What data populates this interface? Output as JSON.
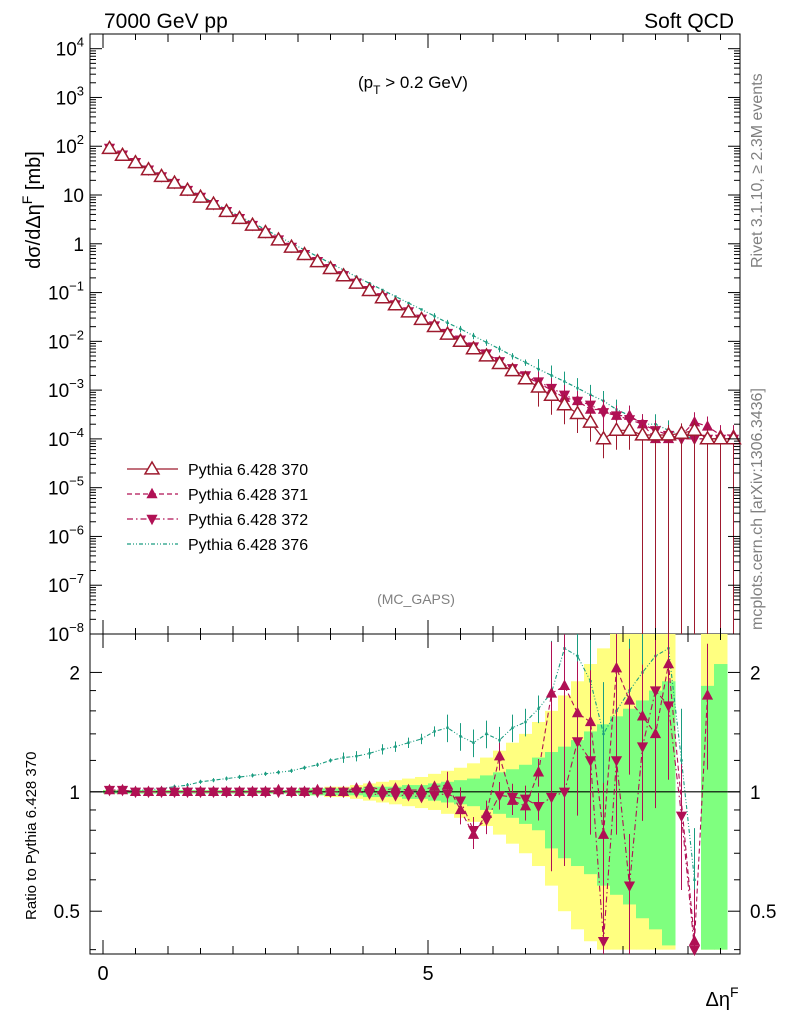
{
  "header": {
    "left": "7000 GeV pp",
    "right": "Soft QCD"
  },
  "cut_label": "(p_T > 0.2 GeV)",
  "analysis_tag": "(MC_GAPS)",
  "side_texts": {
    "rivet": "Rivet 3.1.10, ≥ 2.3M events",
    "mcplots": "mcplots.cern.ch [arXiv:1306.3436]"
  },
  "chart_data": [
    {
      "type": "line",
      "panel": "main",
      "xlabel": "Δη^F",
      "ylabel": "dσ/dΔη^F [mb]",
      "yscale": "log",
      "xlim": [
        -0.2,
        9.8
      ],
      "ylim": [
        1e-08,
        20000
      ],
      "x_ticks": [
        "0",
        "5"
      ],
      "y_ticks": [
        "10^4",
        "10^3",
        "10^2",
        "10",
        "1",
        "10^-1",
        "10^-2",
        "10^-3",
        "10^-4",
        "10^-5",
        "10^-6",
        "10^-7",
        "10^-8"
      ],
      "legend_position": "middle-left",
      "x": [
        0.1,
        0.3,
        0.5,
        0.7,
        0.9,
        1.1,
        1.3,
        1.5,
        1.7,
        1.9,
        2.1,
        2.3,
        2.5,
        2.7,
        2.9,
        3.1,
        3.3,
        3.5,
        3.7,
        3.9,
        4.1,
        4.3,
        4.5,
        4.7,
        4.9,
        5.1,
        5.3,
        5.5,
        5.7,
        5.9,
        6.1,
        6.3,
        6.5,
        6.7,
        6.9,
        7.1,
        7.3,
        7.5,
        7.7,
        7.9,
        8.1,
        8.3,
        8.5,
        8.7,
        8.9,
        9.1,
        9.3,
        9.5,
        9.7
      ],
      "series": [
        {
          "name": "Pythia 6.428 370",
          "color": "#9e1a2e",
          "marker": "open-triangle-up",
          "line": "solid",
          "values": [
            90,
            65,
            46,
            33,
            24,
            17.5,
            12.5,
            9,
            6.5,
            4.6,
            3.3,
            2.4,
            1.7,
            1.2,
            0.85,
            0.6,
            0.43,
            0.31,
            0.22,
            0.155,
            0.11,
            0.078,
            0.056,
            0.04,
            0.028,
            0.02,
            0.014,
            0.01,
            0.007,
            0.005,
            0.0035,
            0.0025,
            0.0017,
            0.00115,
            0.00078,
            0.0005,
            0.00033,
            0.00022,
            0.0001,
            0.00015,
            0.00015,
            0.00012,
            0.00012,
            0.00012,
            0.00013,
            0.00015,
            0.0001,
            0.0001,
            0.0001
          ]
        },
        {
          "name": "Pythia 6.428 371",
          "color": "#b01054",
          "marker": "filled-triangle-up",
          "line": "dashed",
          "values": [
            91,
            66,
            46,
            33,
            24,
            17.5,
            12.6,
            9.1,
            6.5,
            4.6,
            3.35,
            2.42,
            1.71,
            1.22,
            0.86,
            0.61,
            0.44,
            0.315,
            0.225,
            0.158,
            0.112,
            0.08,
            0.057,
            0.041,
            0.029,
            0.0205,
            0.0145,
            0.0105,
            0.0075,
            0.0053,
            0.0037,
            0.0027,
            0.0019,
            0.0014,
            0.001,
            0.0007,
            0.0006,
            0.0004,
            0.0004,
            0.0003,
            0.0003,
            0.0002,
            0.0001,
            0.0001,
            0.00012,
            0.00022,
            0.00018,
            0.00012,
            0.00012
          ]
        },
        {
          "name": "Pythia 6.428 372",
          "color": "#b01054",
          "marker": "filled-triangle-down",
          "line": "dash-dot",
          "values": [
            92,
            67,
            47,
            33,
            24,
            17.6,
            12.6,
            9.1,
            6.5,
            4.65,
            3.35,
            2.42,
            1.71,
            1.22,
            0.86,
            0.61,
            0.44,
            0.315,
            0.225,
            0.158,
            0.112,
            0.08,
            0.057,
            0.041,
            0.029,
            0.021,
            0.0148,
            0.0108,
            0.0078,
            0.0056,
            0.0039,
            0.0028,
            0.002,
            0.0015,
            0.0011,
            0.0008,
            0.0006,
            0.0005,
            0.00035,
            0.0003,
            0.00025,
            0.0002,
            0.00015,
            0.00012,
            0.0001,
            0.0001,
            0.0001,
            0.0001,
            0.0001
          ]
        },
        {
          "name": "Pythia 6.428 376",
          "color": "#1a9c80",
          "marker": "none",
          "line": "dash-dot-dot",
          "values": [
            90,
            66,
            47,
            34,
            25,
            18.2,
            13.2,
            9.6,
            7,
            5.1,
            3.7,
            2.7,
            1.95,
            1.42,
            1.03,
            0.75,
            0.55,
            0.4,
            0.29,
            0.21,
            0.155,
            0.113,
            0.083,
            0.061,
            0.045,
            0.033,
            0.024,
            0.018,
            0.013,
            0.0095,
            0.007,
            0.005,
            0.0037,
            0.0027,
            0.002,
            0.0015,
            0.0011,
            0.0008,
            0.0006,
            0.0004,
            0.0003,
            0.0002,
            0.0002,
            0.00015,
            0.00012,
            0.0001,
            0.0001,
            0.0001,
            0.0001
          ]
        }
      ]
    },
    {
      "type": "line",
      "panel": "ratio",
      "xlabel": "Δη^F",
      "ylabel": "Ratio to Pythia 6.428 370",
      "yscale": "log",
      "xlim": [
        -0.2,
        9.8
      ],
      "ylim": [
        0.39,
        2.5
      ],
      "y_ticks": [
        "0.5",
        "1",
        "2"
      ],
      "reference_line": 1,
      "x": [
        0.1,
        0.3,
        0.5,
        0.7,
        0.9,
        1.1,
        1.3,
        1.5,
        1.7,
        1.9,
        2.1,
        2.3,
        2.5,
        2.7,
        2.9,
        3.1,
        3.3,
        3.5,
        3.7,
        3.9,
        4.1,
        4.3,
        4.5,
        4.7,
        4.9,
        5.1,
        5.3,
        5.5,
        5.7,
        5.9,
        6.1,
        6.3,
        6.5,
        6.7,
        6.9,
        7.1,
        7.3,
        7.5,
        7.7,
        7.9,
        8.1,
        8.3,
        8.5,
        8.7,
        8.9,
        9.1,
        9.3,
        9.5,
        9.7
      ],
      "bands": [
        {
          "name": "stat",
          "color": "#7fff7f",
          "lower": [
            0.99,
            0.99,
            0.99,
            0.99,
            0.99,
            0.99,
            0.99,
            0.99,
            0.99,
            0.99,
            0.99,
            0.99,
            0.99,
            0.99,
            0.99,
            0.98,
            0.98,
            0.98,
            0.98,
            0.98,
            0.97,
            0.97,
            0.97,
            0.96,
            0.96,
            0.95,
            0.94,
            0.93,
            0.92,
            0.9,
            0.88,
            0.86,
            0.83,
            0.8,
            0.72,
            0.68,
            0.65,
            0.62,
            0.58,
            0.55,
            0.52,
            0.48,
            0.45,
            0.41,
            null,
            null,
            0.4,
            0.4,
            null
          ],
          "upper": [
            1.01,
            1.01,
            1.01,
            1.01,
            1.01,
            1.01,
            1.01,
            1.01,
            1.01,
            1.01,
            1.01,
            1.01,
            1.01,
            1.01,
            1.01,
            1.02,
            1.02,
            1.02,
            1.02,
            1.02,
            1.03,
            1.03,
            1.03,
            1.04,
            1.04,
            1.05,
            1.06,
            1.07,
            1.08,
            1.1,
            1.12,
            1.14,
            1.17,
            1.22,
            1.26,
            1.3,
            1.35,
            1.42,
            1.48,
            1.55,
            1.62,
            1.7,
            1.8,
            1.9,
            null,
            null,
            1.85,
            2.1,
            null
          ]
        },
        {
          "name": "total",
          "color": "#ffff80",
          "lower": [
            0.99,
            0.99,
            0.99,
            0.99,
            0.99,
            0.99,
            0.99,
            0.99,
            0.99,
            0.99,
            0.99,
            0.99,
            0.99,
            0.99,
            0.99,
            0.98,
            0.98,
            0.97,
            0.97,
            0.96,
            0.95,
            0.94,
            0.93,
            0.92,
            0.91,
            0.9,
            0.88,
            0.86,
            0.84,
            0.82,
            0.78,
            0.74,
            0.7,
            0.65,
            0.58,
            0.5,
            0.45,
            0.42,
            0.4,
            0.4,
            0.4,
            0.4,
            0.4,
            0.4,
            null,
            null,
            0.4,
            0.4,
            null
          ],
          "upper": [
            1.01,
            1.01,
            1.01,
            1.01,
            1.01,
            1.01,
            1.01,
            1.01,
            1.01,
            1.01,
            1.01,
            1.01,
            1.01,
            1.01,
            1.01,
            1.02,
            1.02,
            1.03,
            1.03,
            1.04,
            1.05,
            1.06,
            1.07,
            1.08,
            1.09,
            1.11,
            1.13,
            1.15,
            1.18,
            1.22,
            1.27,
            1.33,
            1.4,
            1.5,
            1.6,
            1.75,
            1.9,
            2.1,
            2.3,
            2.5,
            2.5,
            2.5,
            2.5,
            2.5,
            null,
            null,
            2.5,
            2.5,
            null
          ]
        }
      ],
      "series": [
        {
          "name": "Pythia 6.428 371",
          "color": "#b01054",
          "marker": "filled-triangle-up",
          "line": "dashed",
          "values": [
            1.01,
            1.01,
            1.0,
            1.0,
            1.0,
            1.0,
            1.0,
            1.0,
            1.0,
            1.0,
            1.0,
            1.0,
            1.0,
            1.01,
            1.0,
            1.0,
            1.01,
            1.0,
            1.0,
            1.02,
            1.03,
            1.01,
            1.02,
            1.01,
            1.01,
            1.03,
            1.04,
            0.9,
            0.78,
            0.88,
            1.23,
            0.95,
            0.92,
            1.12,
            1.77,
            1.85,
            1.58,
            1.5,
            0.78,
            2.05,
            1.7,
            1.55,
            1.4,
            2.1,
            null,
            0.42,
            1.75,
            null,
            null
          ]
        },
        {
          "name": "Pythia 6.428 372",
          "color": "#b01054",
          "marker": "filled-triangle-down",
          "line": "dash-dot",
          "values": [
            1.01,
            1.01,
            1.0,
            1.0,
            1.0,
            1.0,
            1.0,
            1.0,
            1.0,
            1.0,
            1.0,
            1.0,
            1.0,
            1.0,
            1.0,
            1.0,
            1.0,
            1.0,
            1.0,
            1.0,
            0.99,
            0.98,
            0.98,
            0.98,
            0.97,
            0.98,
            0.99,
            0.95,
            0.8,
            0.85,
            0.98,
            0.97,
            0.96,
            0.92,
            0.97,
            1.0,
            1.34,
            1.2,
            0.42,
            1.2,
            0.58,
            1.3,
            1.8,
            1.65,
            0.87,
            0.4,
            null,
            null,
            null
          ]
        },
        {
          "name": "Pythia 6.428 376",
          "color": "#1a9c80",
          "marker": "none",
          "line": "dash-dot-dot",
          "values": [
            1.0,
            1.0,
            1.01,
            1.01,
            1.02,
            1.03,
            1.04,
            1.06,
            1.07,
            1.08,
            1.09,
            1.1,
            1.11,
            1.12,
            1.13,
            1.15,
            1.17,
            1.2,
            1.22,
            1.23,
            1.25,
            1.28,
            1.3,
            1.33,
            1.36,
            1.42,
            1.45,
            1.38,
            1.33,
            1.4,
            1.35,
            1.45,
            1.5,
            1.62,
            1.78,
            2.3,
            2.2,
            1.9,
            1.4,
            1.6,
            1.8,
            2.0,
            2.2,
            2.3,
            1.2,
            0.6,
            null,
            null,
            null
          ]
        }
      ]
    }
  ]
}
